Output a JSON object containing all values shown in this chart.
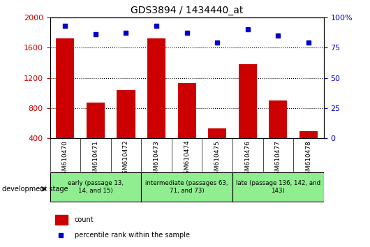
{
  "title": "GDS3894 / 1434440_at",
  "categories": [
    "GSM610470",
    "GSM610471",
    "GSM610472",
    "GSM610473",
    "GSM610474",
    "GSM610475",
    "GSM610476",
    "GSM610477",
    "GSM610478"
  ],
  "counts": [
    1720,
    870,
    1040,
    1720,
    1130,
    530,
    1380,
    900,
    490
  ],
  "percentiles": [
    93,
    86,
    87,
    93,
    87,
    79,
    90,
    85,
    79
  ],
  "bar_color": "#cc0000",
  "dot_color": "#0000cc",
  "left_axis_color": "#cc0000",
  "right_axis_color": "#0000cc",
  "ylim_left": [
    400,
    2000
  ],
  "ylim_right": [
    0,
    100
  ],
  "yticks_left": [
    400,
    800,
    1200,
    1600,
    2000
  ],
  "yticks_right": [
    0,
    25,
    50,
    75,
    100
  ],
  "group_defs": [
    {
      "start": 0,
      "end": 2,
      "label": "early (passage 13,\n14, and 15)"
    },
    {
      "start": 3,
      "end": 5,
      "label": "intermediate (passages 63,\n71, and 73)"
    },
    {
      "start": 6,
      "end": 8,
      "label": "late (passage 136, 142, and\n143)"
    }
  ],
  "group_stage_label": "development stage",
  "legend_count": "count",
  "legend_percentile": "percentile rank within the sample",
  "xtick_bg_color": "#d3d3d3",
  "group_bg_color": "#90ee90",
  "plot_bg_color": "#ffffff"
}
